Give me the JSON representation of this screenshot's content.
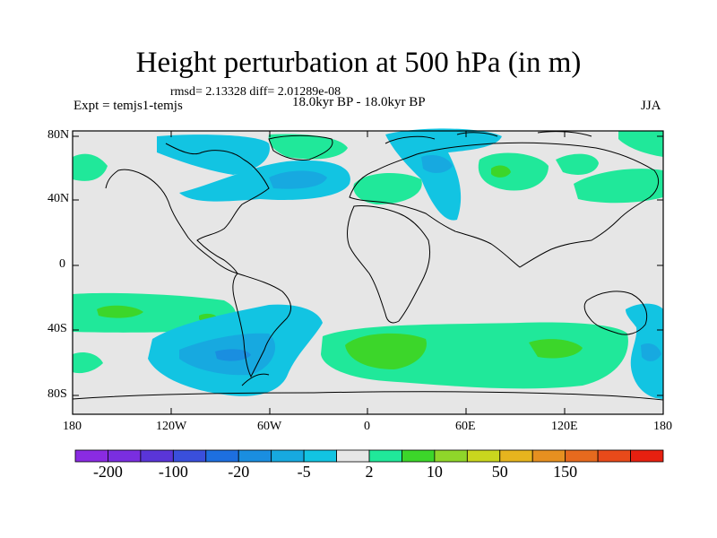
{
  "title": "Height perturbation at 500 hPa (in m)",
  "stats": "rmsd= 2.13328 diff= 2.01289e-08",
  "experiment": "Expt = temjs1-temjs",
  "period": "18.0kyr BP - 18.0kyr BP",
  "season": "JJA",
  "lat_ticks": [
    "80N",
    "40N",
    "0",
    "40S",
    "80S"
  ],
  "lon_ticks": [
    "180",
    "120W",
    "60W",
    "0",
    "60E",
    "120E",
    "180"
  ],
  "colorbar": {
    "colors": [
      "#8a2be2",
      "#7a2ee0",
      "#5a35d8",
      "#3a4fdc",
      "#1d6fe0",
      "#1a8ee0",
      "#17a9e0",
      "#12c4e2",
      "#e6e6e6",
      "#20e89a",
      "#3cd62a",
      "#8fd62a",
      "#c9d61e",
      "#e6b41e",
      "#e69020",
      "#e66a1e",
      "#e84a1a",
      "#e62010"
    ],
    "labels": [
      "-200",
      "-100",
      "-20",
      "-5",
      "2",
      "10",
      "50",
      "150"
    ]
  },
  "field_colors": {
    "ocean": "#e6e6e6",
    "green": "#20e89a",
    "darkgreen": "#3cd62a",
    "lightblue": "#12c4e2",
    "midblue": "#17a9e0",
    "blue": "#1a8ee0"
  }
}
